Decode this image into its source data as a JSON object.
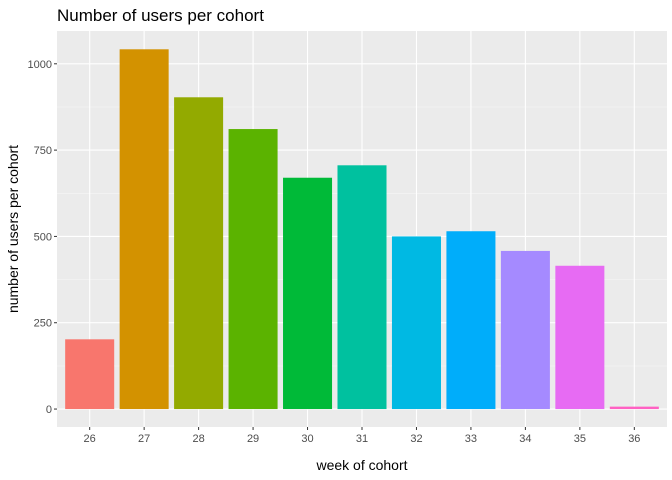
{
  "chart_data": {
    "type": "bar",
    "title": "Number of users per cohort",
    "xlabel": "week of cohort",
    "ylabel": "number of users per cohort",
    "categories": [
      "26",
      "27",
      "28",
      "29",
      "30",
      "31",
      "32",
      "33",
      "34",
      "35",
      "36"
    ],
    "values": [
      202,
      1042,
      903,
      811,
      670,
      706,
      500,
      515,
      458,
      415,
      7
    ],
    "colors": [
      "#F8766D",
      "#D39200",
      "#93AA00",
      "#5BB300",
      "#00BA38",
      "#00C19F",
      "#00B9E3",
      "#00ADFA",
      "#A58AFF",
      "#E76BF3",
      "#FF61C3"
    ],
    "ylim": [
      -52,
      1095
    ],
    "yticks": [
      0,
      250,
      500,
      750,
      1000
    ],
    "yminor": [
      125,
      375,
      625,
      875
    ],
    "y_tick_labels": [
      "0",
      "250",
      "500",
      "750",
      "1000"
    ],
    "grid": true,
    "legend": "none",
    "panel_background": "#EBEBEB"
  }
}
